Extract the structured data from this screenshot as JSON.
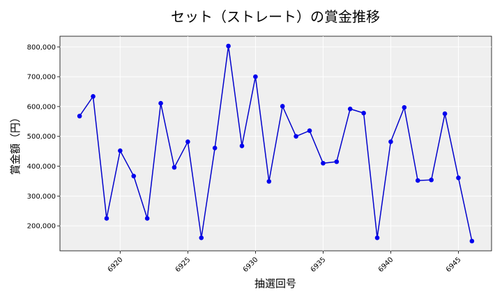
{
  "chart_data": {
    "type": "line",
    "title": "セット（ストレート）の賞金推移",
    "xlabel": "抽選回号",
    "ylabel": "賞金額（円）",
    "x": [
      6917,
      6918,
      6919,
      6920,
      6921,
      6922,
      6923,
      6924,
      6925,
      6926,
      6927,
      6928,
      6929,
      6930,
      6931,
      6932,
      6933,
      6934,
      6935,
      6936,
      6937,
      6938,
      6939,
      6940,
      6941,
      6942,
      6943,
      6944,
      6945,
      6946
    ],
    "series": [
      {
        "values": [
          568000,
          634000,
          225000,
          452000,
          367000,
          225000,
          611000,
          396000,
          482000,
          160000,
          461000,
          803000,
          468000,
          700000,
          349000,
          601000,
          500000,
          519000,
          410000,
          415000,
          592000,
          578000,
          160000,
          482000,
          597000,
          352000,
          354000,
          576000,
          361000,
          149000
        ]
      }
    ],
    "xticks": [
      6920,
      6925,
      6930,
      6935,
      6940,
      6945
    ],
    "xtick_labels": [
      "6920",
      "6925",
      "6930",
      "6935",
      "6940",
      "6945"
    ],
    "yticks": [
      200000,
      300000,
      400000,
      500000,
      600000,
      700000,
      800000
    ],
    "ytick_labels": [
      "200,000",
      "300,000",
      "400,000",
      "500,000",
      "600,000",
      "700,000",
      "800,000"
    ],
    "xlim": [
      6915.55,
      6947.45
    ],
    "ylim": [
      116300,
      835700
    ],
    "grid": true,
    "line_color": "#0000cc",
    "marker_color": "#0000ee",
    "plot_background": "#efefef",
    "grid_color": "#ffffff"
  }
}
